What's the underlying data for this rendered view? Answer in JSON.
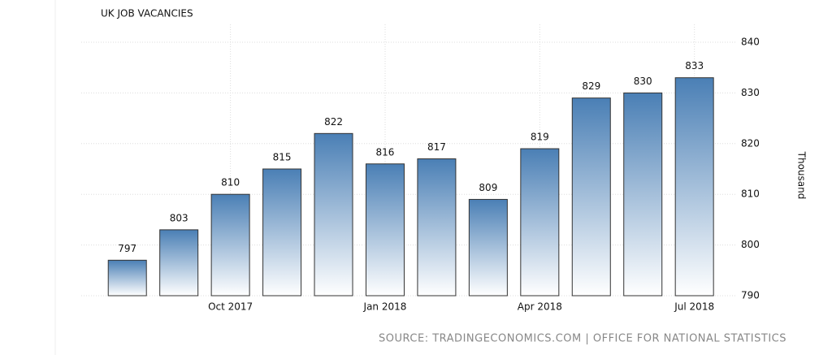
{
  "chart_data": {
    "type": "bar",
    "title": "UK JOB VACANCIES",
    "categories": [
      null,
      null,
      "Oct 2017",
      null,
      null,
      "Jan 2018",
      null,
      null,
      "Apr 2018",
      null,
      null,
      "Jul 2018"
    ],
    "values": [
      797,
      803,
      810,
      815,
      822,
      816,
      817,
      809,
      819,
      829,
      830,
      833
    ],
    "color": "#4a7fb5",
    "ylim": [
      790,
      840
    ],
    "yticks": [
      790,
      800,
      810,
      820,
      830,
      840
    ],
    "y_axis_label": "Thousand",
    "grid": true,
    "source": "SOURCE: TRADINGECONOMICS.COM | OFFICE FOR NATIONAL STATISTICS"
  }
}
